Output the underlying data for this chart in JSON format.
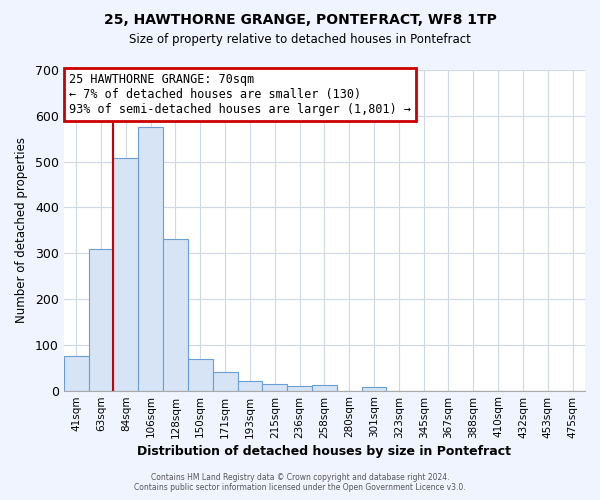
{
  "title": "25, HAWTHORNE GRANGE, PONTEFRACT, WF8 1TP",
  "subtitle": "Size of property relative to detached houses in Pontefract",
  "xlabel": "Distribution of detached houses by size in Pontefract",
  "ylabel": "Number of detached properties",
  "bar_labels": [
    "41sqm",
    "63sqm",
    "84sqm",
    "106sqm",
    "128sqm",
    "150sqm",
    "171sqm",
    "193sqm",
    "215sqm",
    "236sqm",
    "258sqm",
    "280sqm",
    "301sqm",
    "323sqm",
    "345sqm",
    "367sqm",
    "388sqm",
    "410sqm",
    "432sqm",
    "453sqm",
    "475sqm"
  ],
  "bar_values": [
    75,
    310,
    507,
    575,
    330,
    68,
    40,
    20,
    15,
    10,
    13,
    0,
    8,
    0,
    0,
    0,
    0,
    0,
    0,
    0,
    0
  ],
  "bar_color": "#d6e4f5",
  "bar_edge_color": "#6b9fd4",
  "ylim": [
    0,
    700
  ],
  "yticks": [
    0,
    100,
    200,
    300,
    400,
    500,
    600,
    700
  ],
  "vline_x": 1.5,
  "vline_color": "#cc0000",
  "annotation_lines": [
    "25 HAWTHORNE GRANGE: 70sqm",
    "← 7% of detached houses are smaller (130)",
    "93% of semi-detached houses are larger (1,801) →"
  ],
  "annotation_box_color": "#ffffff",
  "annotation_box_edge_color": "#cc0000",
  "plot_bg_color": "#ffffff",
  "fig_bg_color": "#f0f4ff",
  "grid_color": "#d0d8e8",
  "footer_line1": "Contains HM Land Registry data © Crown copyright and database right 2024.",
  "footer_line2": "Contains public sector information licensed under the Open Government Licence v3.0."
}
